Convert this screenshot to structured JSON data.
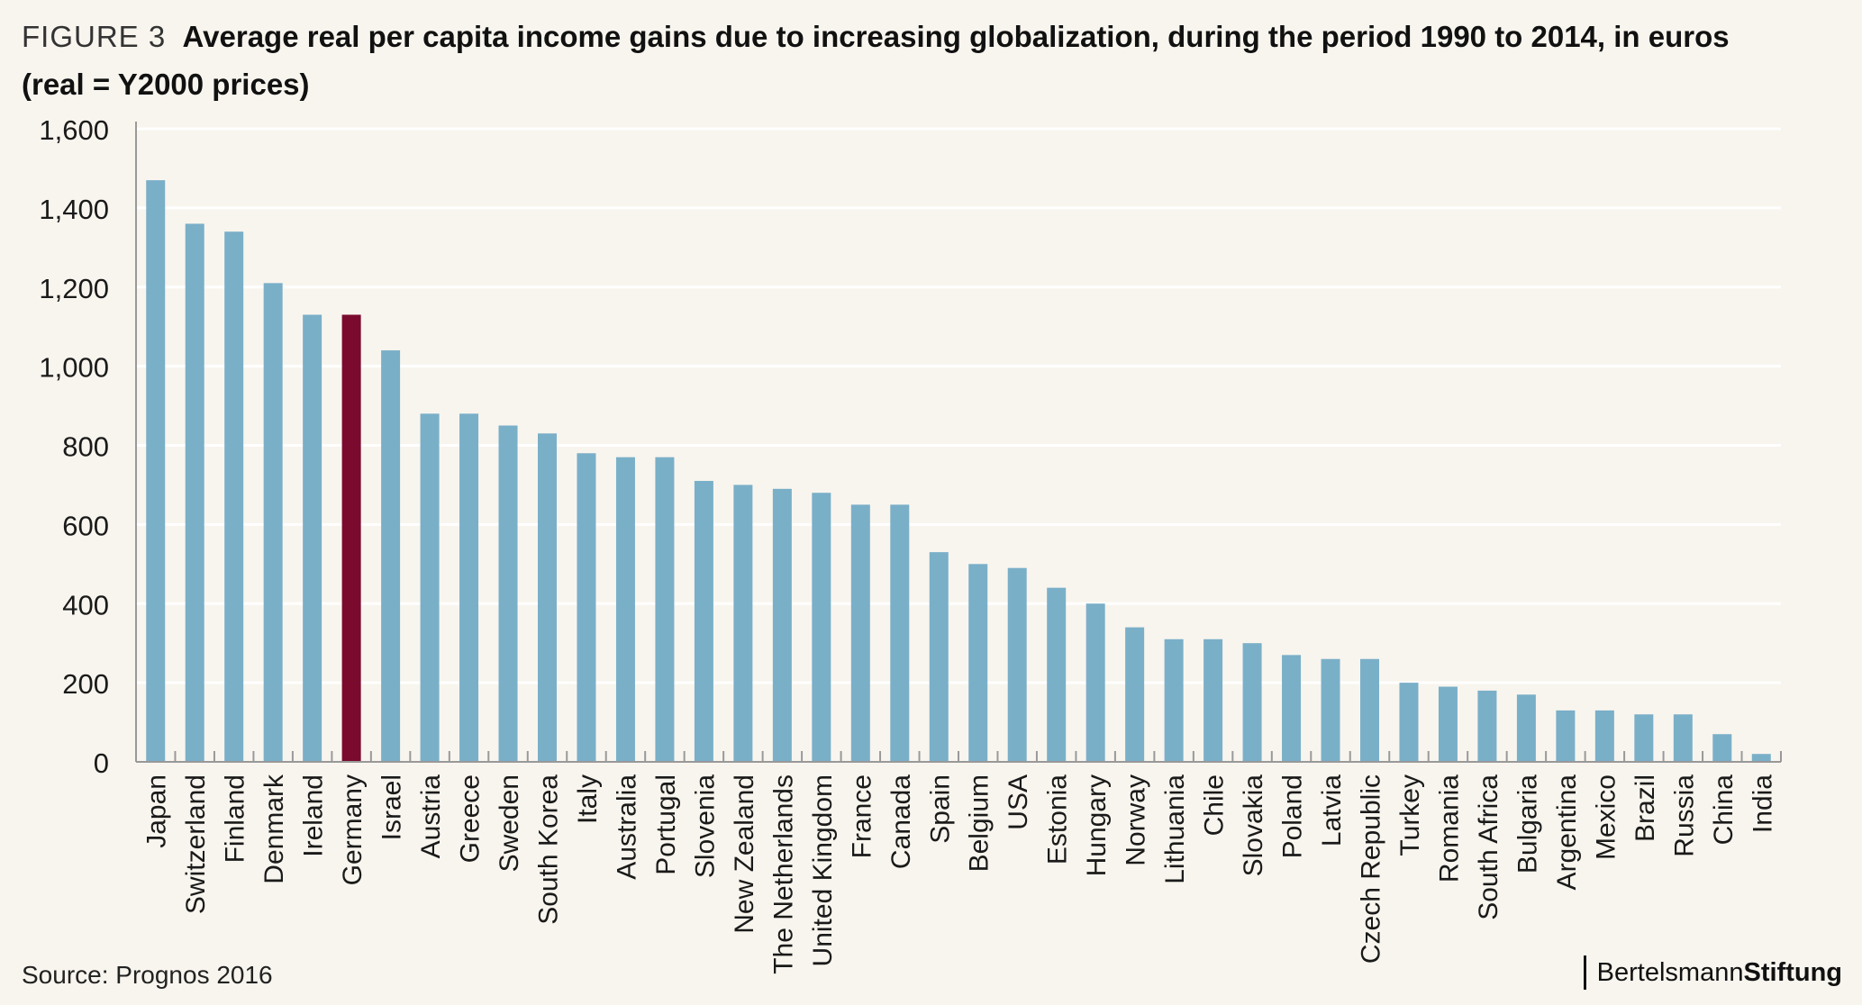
{
  "header": {
    "figure_label": "FIGURE 3",
    "title_line1": "Average real per capita income gains due to increasing globalization, during the period 1990 to 2014, in euros",
    "title_line2": "(real = Y2000 prices)"
  },
  "footer": {
    "source": "Source: Prognos 2016",
    "logo_part1": "Bertelsmann",
    "logo_part2": "Stiftung"
  },
  "colors": {
    "bar": "#7aafc8",
    "highlight": "#7a0a2e",
    "background": "#f8f5ee",
    "grid": "#ffffff",
    "axis": "#999999"
  },
  "chart_data": {
    "type": "bar",
    "title": "Average real per capita income gains due to increasing globalization, during the period 1990 to 2014, in euros",
    "subtitle": "(real = Y2000 prices)",
    "xlabel": "",
    "ylabel": "",
    "ylim": [
      0,
      1600
    ],
    "yticks": [
      0,
      200,
      400,
      600,
      800,
      1000,
      1200,
      1400,
      1600
    ],
    "ytick_labels": [
      "0",
      "200",
      "400",
      "600",
      "800",
      "1,000",
      "1,200",
      "1,400",
      "1,600"
    ],
    "grid": true,
    "highlight_category": "Germany",
    "categories": [
      "Japan",
      "Switzerland",
      "Finland",
      "Denmark",
      "Ireland",
      "Germany",
      "Israel",
      "Austria",
      "Greece",
      "Sweden",
      "South Korea",
      "Italy",
      "Australia",
      "Portugal",
      "Slovenia",
      "New Zealand",
      "The Netherlands",
      "United Kingdom",
      "France",
      "Canada",
      "Spain",
      "Belgium",
      "USA",
      "Estonia",
      "Hungary",
      "Norway",
      "Lithuania",
      "Chile",
      "Slovakia",
      "Poland",
      "Latvia",
      "Czech Republic",
      "Turkey",
      "Romania",
      "South Africa",
      "Bulgaria",
      "Argentina",
      "Mexico",
      "Brazil",
      "Russia",
      "China",
      "India"
    ],
    "values": [
      1470,
      1360,
      1340,
      1210,
      1130,
      1130,
      1040,
      880,
      880,
      850,
      830,
      780,
      770,
      770,
      710,
      700,
      690,
      680,
      650,
      650,
      530,
      500,
      490,
      440,
      400,
      340,
      310,
      310,
      300,
      270,
      260,
      260,
      200,
      190,
      180,
      170,
      130,
      130,
      120,
      120,
      70,
      20
    ]
  }
}
